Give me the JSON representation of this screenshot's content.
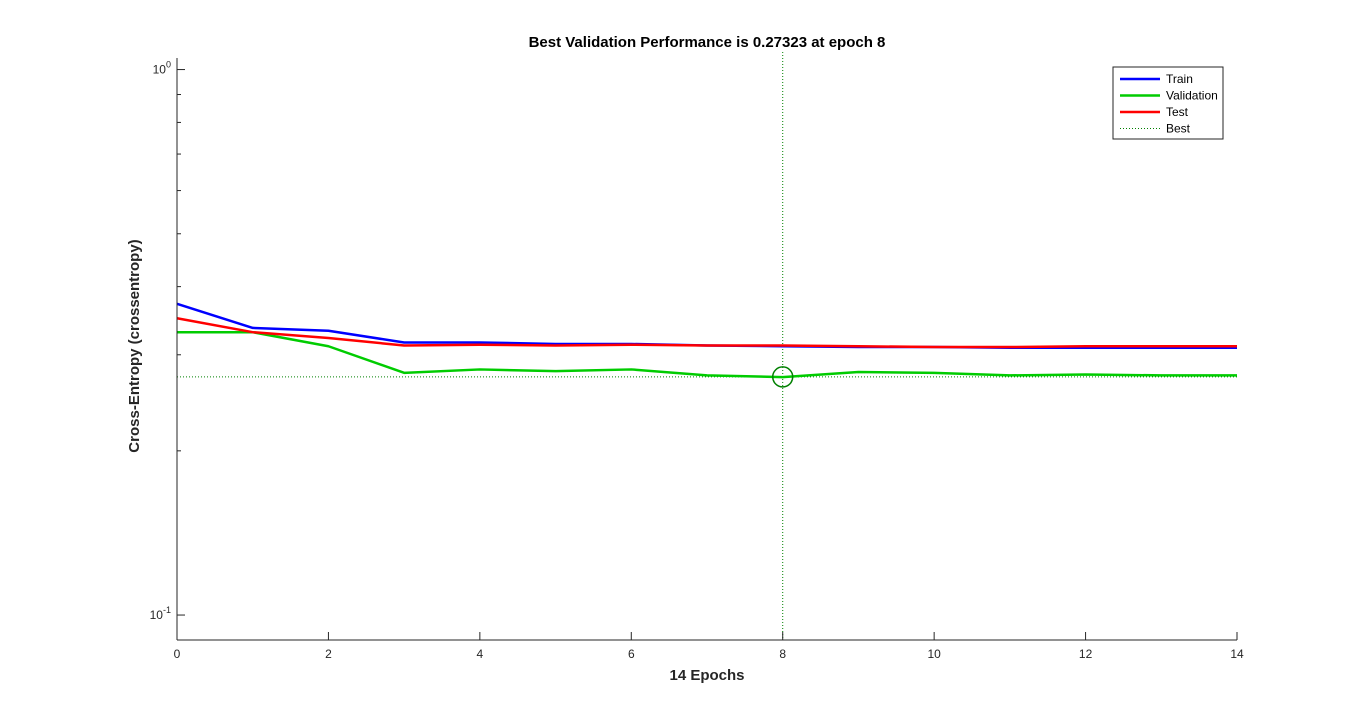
{
  "chart_data": {
    "type": "line",
    "title": "Best Validation Performance is 0.27323 at epoch 8",
    "xlabel": "14 Epochs",
    "ylabel": "Cross-Entropy  (crossentropy)",
    "xlim": [
      0,
      14
    ],
    "ylim": [
      0.09,
      1.05
    ],
    "yscale": "log",
    "x_ticks": [
      0,
      2,
      4,
      6,
      8,
      10,
      12,
      14
    ],
    "y_ticks": [
      {
        "value": 0.1,
        "base": "10",
        "exp": "-1"
      },
      {
        "value": 1,
        "base": "10",
        "exp": "0"
      }
    ],
    "x": [
      0,
      1,
      2,
      3,
      4,
      5,
      6,
      7,
      8,
      9,
      10,
      11,
      12,
      13,
      14
    ],
    "series": [
      {
        "name": "Train",
        "color": "#0000ff",
        "values": [
          0.372,
          0.336,
          0.332,
          0.316,
          0.316,
          0.314,
          0.314,
          0.312,
          0.311,
          0.31,
          0.31,
          0.309,
          0.309,
          0.309,
          0.309
        ]
      },
      {
        "name": "Validation",
        "color": "#00cc00",
        "values": [
          0.33,
          0.33,
          0.311,
          0.278,
          0.282,
          0.28,
          0.282,
          0.275,
          0.273,
          0.279,
          0.278,
          0.275,
          0.276,
          0.275,
          0.275
        ]
      },
      {
        "name": "Test",
        "color": "#ff0000",
        "values": [
          0.35,
          0.33,
          0.322,
          0.312,
          0.313,
          0.312,
          0.313,
          0.312,
          0.312,
          0.311,
          0.31,
          0.31,
          0.311,
          0.311,
          0.311
        ]
      }
    ],
    "best": {
      "name": "Best",
      "epoch": 8,
      "value": 0.27323,
      "color": "#008000"
    },
    "legend": {
      "position": "top-right",
      "entries": [
        "Train",
        "Validation",
        "Test",
        "Best"
      ]
    },
    "grid": false
  }
}
